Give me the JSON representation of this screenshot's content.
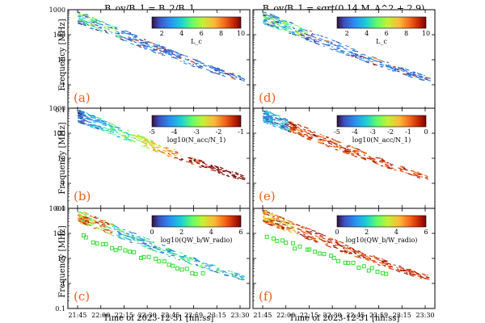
{
  "figure": {
    "col_titles": [
      "B_ov/B_1 = B_2/B_1",
      "B_ov/B_1 = sqrt(0.14 M_A^2 + 2.9)"
    ],
    "ylabel": "Frequency [MHz]",
    "xlabel": "Time of 2023-12-31 [hh:ss]"
  },
  "chart_data": [
    {
      "type": "scatter",
      "panel_label": "(a)",
      "colorbar": {
        "label": "L_c",
        "ticks": [
          "2",
          "4",
          "6",
          "8",
          "10"
        ],
        "range": [
          1,
          10
        ]
      },
      "yscale": "log",
      "ylim": [
        0.1,
        1000
      ],
      "y_ticks": [
        "0.1",
        "1",
        "10",
        "100",
        "1000"
      ],
      "x_ticks": [
        "21:45",
        "22:00",
        "22:15",
        "22:30",
        "22:45",
        "22:59",
        "23:15",
        "23:30"
      ],
      "markers": false
    },
    {
      "type": "scatter",
      "panel_label": "(d)",
      "colorbar": {
        "label": "L_c",
        "ticks": [
          "2",
          "4",
          "6",
          "8",
          "10"
        ],
        "range": [
          1,
          10
        ]
      },
      "yscale": "log",
      "ylim": [
        0.1,
        1000
      ],
      "y_ticks": [
        "0.1",
        "1",
        "10",
        "100",
        "1000"
      ],
      "x_ticks": [
        "21:45",
        "22:00",
        "22:15",
        "22:30",
        "22:45",
        "22:59",
        "23:15",
        "23:30"
      ],
      "markers": false
    },
    {
      "type": "scatter",
      "panel_label": "(b)",
      "colorbar": {
        "label": "log10(N_acc/N_1)",
        "ticks": [
          "-5",
          "-4",
          "-3",
          "-2",
          "-1"
        ],
        "range": [
          -5,
          -1
        ]
      },
      "yscale": "log",
      "ylim": [
        0.1,
        1000
      ],
      "y_ticks": [
        "0.1",
        "1",
        "10",
        "100",
        "1000"
      ],
      "x_ticks": [
        "21:45",
        "22:00",
        "22:15",
        "22:30",
        "22:45",
        "22:59",
        "23:15",
        "23:30"
      ],
      "markers": false
    },
    {
      "type": "scatter",
      "panel_label": "(e)",
      "colorbar": {
        "label": "log10(N_acc/N_1)",
        "ticks": [
          "-5",
          "-4",
          "-3",
          "-2",
          "-1",
          "0"
        ],
        "range": [
          -5,
          0
        ]
      },
      "yscale": "log",
      "ylim": [
        0.1,
        1000
      ],
      "y_ticks": [
        "0.1",
        "1",
        "10",
        "100",
        "1000"
      ],
      "x_ticks": [
        "21:45",
        "22:00",
        "22:15",
        "22:30",
        "22:45",
        "22:59",
        "23:15",
        "23:30"
      ],
      "markers": false
    },
    {
      "type": "scatter",
      "panel_label": "(c)",
      "colorbar": {
        "label": "log10(QW_b/W_radio)",
        "ticks": [
          "0",
          "2",
          "4",
          "6"
        ],
        "range": [
          0,
          6
        ]
      },
      "yscale": "log",
      "ylim": [
        0.1,
        1000
      ],
      "y_ticks": [
        "0.1",
        "1",
        "10",
        "100",
        "1000"
      ],
      "x_ticks": [
        "21:45",
        "22:00",
        "22:15",
        "22:30",
        "22:45",
        "22:59",
        "23:15",
        "23:30"
      ],
      "markers": true
    },
    {
      "type": "scatter",
      "panel_label": "(f)",
      "colorbar": {
        "label": "log10(QW_b/W_radio)",
        "ticks": [
          "0",
          "2",
          "4",
          "6"
        ],
        "range": [
          0,
          6
        ]
      },
      "yscale": "log",
      "ylim": [
        0.1,
        1000
      ],
      "y_ticks": [
        "0.1",
        "1",
        "10",
        "100",
        "1000"
      ],
      "x_ticks": [
        "21:45",
        "22:00",
        "22:15",
        "22:30",
        "22:45",
        "22:59",
        "23:15",
        "23:30"
      ],
      "markers": true
    }
  ],
  "colors": {
    "observation_marker": "#33dd33",
    "panel_label": "#e8601c"
  }
}
